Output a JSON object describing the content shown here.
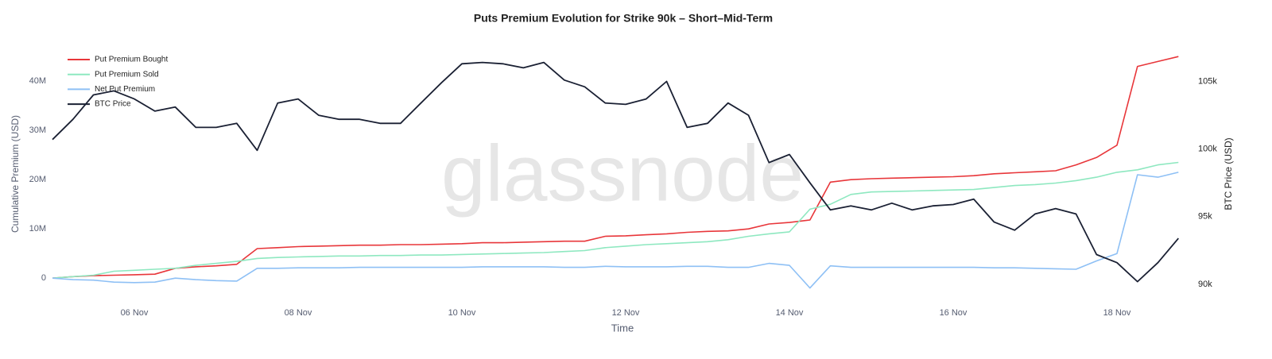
{
  "chart_data": {
    "type": "line",
    "title": "Puts Premium Evolution for Strike 90k – Short–Mid-Term",
    "watermark": "glassnode",
    "x_label": "Time",
    "y_label": "Cumulative Premium (USD)",
    "y2_label": "BTC Price (USD)",
    "grid": false,
    "legend": "top-left",
    "categories": [
      null,
      null,
      null,
      null,
      "06 Nov",
      null,
      null,
      null,
      null,
      null,
      null,
      null,
      "08 Nov",
      null,
      null,
      null,
      null,
      null,
      null,
      null,
      "10 Nov",
      null,
      null,
      null,
      null,
      null,
      null,
      null,
      "12 Nov",
      null,
      null,
      null,
      null,
      null,
      null,
      null,
      "14 Nov",
      null,
      null,
      null,
      null,
      null,
      null,
      null,
      "16 Nov",
      null,
      null,
      null,
      null,
      null,
      null,
      null,
      "18 Nov",
      null,
      null,
      null
    ],
    "ylim": [
      -4000000,
      46000000
    ],
    "yticks": [
      0,
      {
        "value": 10000000,
        "label": "10M"
      },
      {
        "value": 20000000,
        "label": "20M"
      },
      {
        "value": 30000000,
        "label": "30M"
      },
      {
        "value": 40000000,
        "label": "40M"
      }
    ],
    "y2lim": [
      89000,
      107200
    ],
    "y2ticks": [
      {
        "value": 90000,
        "label": "90k"
      },
      {
        "value": 95000,
        "label": "95k"
      },
      {
        "value": 100000,
        "label": "100k"
      },
      {
        "value": 105000,
        "label": "105k"
      }
    ],
    "series": [
      {
        "name": "Put Premium Bought",
        "color": "#e8363a",
        "values": [
          0,
          300000,
          500000,
          600000,
          700000,
          800000,
          2000000,
          2300000,
          2500000,
          2800000,
          6000000,
          6200000,
          6400000,
          6500000,
          6600000,
          6700000,
          6700000,
          6800000,
          6800000,
          6900000,
          7000000,
          7200000,
          7200000,
          7300000,
          7400000,
          7500000,
          7500000,
          8500000,
          8600000,
          8800000,
          9000000,
          9300000,
          9500000,
          9600000,
          10000000,
          11000000,
          11300000,
          11800000,
          19500000,
          20000000,
          20200000,
          20300000,
          20400000,
          20500000,
          20600000,
          20800000,
          21200000,
          21400000,
          21600000,
          21800000,
          23000000,
          24500000,
          27000000,
          43000000,
          44000000,
          45000000
        ]
      },
      {
        "name": "Put Premium Sold",
        "color": "#8ee8c0",
        "values": [
          0,
          300000,
          600000,
          1400000,
          1600000,
          1800000,
          2000000,
          2600000,
          3000000,
          3400000,
          4000000,
          4200000,
          4300000,
          4400000,
          4500000,
          4500000,
          4600000,
          4600000,
          4700000,
          4700000,
          4800000,
          4900000,
          5000000,
          5100000,
          5200000,
          5400000,
          5600000,
          6200000,
          6500000,
          6800000,
          7000000,
          7200000,
          7400000,
          7800000,
          8500000,
          9000000,
          9400000,
          14000000,
          15000000,
          17000000,
          17500000,
          17600000,
          17700000,
          17800000,
          17900000,
          18000000,
          18400000,
          18800000,
          19000000,
          19300000,
          19800000,
          20500000,
          21500000,
          22000000,
          23000000,
          23500000
        ]
      },
      {
        "name": "Net Put Premium",
        "color": "#8ec0f5",
        "values": [
          0,
          -300000,
          -400000,
          -800000,
          -900000,
          -800000,
          0,
          -300000,
          -500000,
          -600000,
          2000000,
          2000000,
          2100000,
          2100000,
          2100000,
          2200000,
          2200000,
          2200000,
          2200000,
          2200000,
          2200000,
          2300000,
          2300000,
          2300000,
          2300000,
          2200000,
          2200000,
          2400000,
          2300000,
          2300000,
          2300000,
          2400000,
          2400000,
          2200000,
          2200000,
          3000000,
          2600000,
          -2000000,
          2500000,
          2200000,
          2200000,
          2200000,
          2200000,
          2200000,
          2200000,
          2200000,
          2100000,
          2100000,
          2000000,
          1900000,
          1800000,
          3500000,
          5000000,
          21000000,
          20500000,
          21500000
        ]
      },
      {
        "name": "BTC Price",
        "color": "#1a2033",
        "axis": "y2",
        "values": [
          100700,
          102200,
          104000,
          104300,
          103700,
          102800,
          103100,
          101600,
          101600,
          101900,
          99900,
          103400,
          103700,
          102500,
          102200,
          102200,
          101900,
          101900,
          103400,
          104900,
          106300,
          106400,
          106300,
          106000,
          106400,
          105100,
          104600,
          103400,
          103300,
          103700,
          105000,
          101600,
          101900,
          103400,
          102500,
          99000,
          99600,
          97500,
          95500,
          95800,
          95500,
          96000,
          95500,
          95800,
          95900,
          96300,
          94600,
          94000,
          95200,
          95600,
          95200,
          92200,
          91600,
          90200,
          91600,
          93400
        ]
      }
    ]
  }
}
